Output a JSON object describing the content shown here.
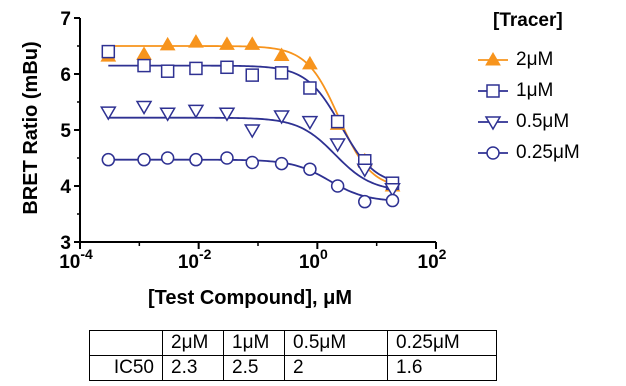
{
  "chart_data": {
    "type": "scatter",
    "xlabel": "[Test Compound], μM",
    "ylabel": "BRET Ratio (mBu)",
    "x_scale": "log",
    "xlim": [
      0.0001,
      100
    ],
    "ylim": [
      3,
      7
    ],
    "x_ticks": [
      {
        "base": "10",
        "exp": "-4"
      },
      {
        "base": "10",
        "exp": "-2"
      },
      {
        "base": "10",
        "exp": "0"
      },
      {
        "base": "10",
        "exp": "2"
      }
    ],
    "y_ticks": [
      "3",
      "4",
      "5",
      "6",
      "7"
    ],
    "legend_title": "[Tracer]",
    "legend_position": "top-right",
    "x": [
      0.0003,
      0.0012,
      0.003,
      0.009,
      0.03,
      0.08,
      0.25,
      0.75,
      2.2,
      6.3,
      18.5
    ],
    "series": [
      {
        "name": "2μM",
        "marker": "triangle-up-filled",
        "color": "#F7941D",
        "values": [
          6.32,
          6.35,
          6.52,
          6.57,
          6.53,
          6.53,
          6.33,
          6.18,
          5.1,
          4.45,
          4.0
        ],
        "fit": {
          "top": 6.5,
          "bottom": 3.95,
          "ic50": 2.3,
          "hill": 1.6
        }
      },
      {
        "name": "1μM",
        "marker": "square-open",
        "color": "#2E3192",
        "values": [
          6.4,
          6.15,
          6.05,
          6.1,
          6.12,
          5.98,
          6.02,
          5.75,
          5.15,
          4.45,
          4.05
        ],
        "fit": {
          "top": 6.15,
          "bottom": 4.0,
          "ic50": 2.5,
          "hill": 1.5
        }
      },
      {
        "name": "0.5μM",
        "marker": "triangle-down-open",
        "color": "#2E3192",
        "values": [
          5.32,
          5.42,
          5.3,
          5.35,
          5.3,
          5.0,
          5.25,
          5.15,
          4.75,
          4.3,
          3.95
        ],
        "fit": {
          "top": 5.22,
          "bottom": 3.9,
          "ic50": 2,
          "hill": 1.4
        }
      },
      {
        "name": "0.25μM",
        "marker": "circle-open",
        "color": "#2E3192",
        "values": [
          4.47,
          4.47,
          4.5,
          4.47,
          4.5,
          4.42,
          4.4,
          4.3,
          4.0,
          3.72,
          3.74
        ],
        "fit": {
          "top": 4.47,
          "bottom": 3.72,
          "ic50": 1.6,
          "hill": 1.4
        }
      }
    ]
  },
  "ic50_table": {
    "headers": [
      "",
      "2μM",
      "1μM",
      "0.5μM",
      "0.25μM"
    ],
    "row_label": "IC50",
    "values": [
      "2.3",
      "2.5",
      "2",
      "1.6"
    ]
  }
}
